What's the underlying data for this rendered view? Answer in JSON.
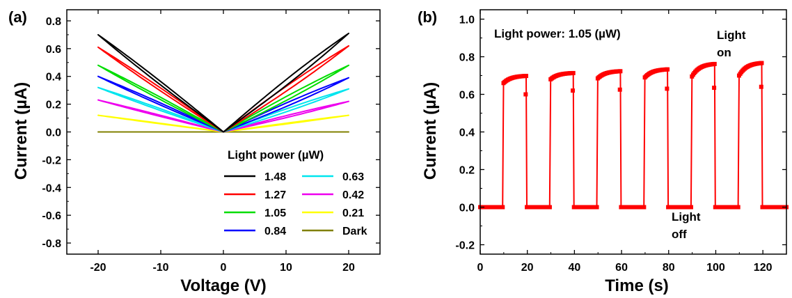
{
  "chart_data": [
    {
      "panel": "(a)",
      "type": "line",
      "xlabel": "Voltage (V)",
      "ylabel": "Current (µA)",
      "xlim": [
        -25,
        25
      ],
      "ylim": [
        -0.88,
        0.88
      ],
      "xticks": [
        -20,
        -10,
        0,
        10,
        20
      ],
      "yticks": [
        -0.8,
        -0.6,
        -0.4,
        -0.2,
        0.0,
        0.2,
        0.4,
        0.6,
        0.8
      ],
      "ytick_labels": [
        "-0.8",
        "-0.6",
        "-0.4",
        "-0.2",
        "0.0",
        "0.2",
        "0.4",
        "0.6",
        "0.8"
      ],
      "legend_title": "Light power (µW)",
      "legend_position": "bottom-right",
      "series": [
        {
          "name": "1.48",
          "color": "#000000",
          "end_values": [
            -0.7,
            0.71
          ],
          "hysteresis": 0.06
        },
        {
          "name": "1.27",
          "color": "#ff0000",
          "end_values": [
            -0.61,
            0.62
          ],
          "hysteresis": 0.05
        },
        {
          "name": "1.05",
          "color": "#00dd00",
          "end_values": [
            -0.48,
            0.48
          ],
          "hysteresis": 0.04
        },
        {
          "name": "0.84",
          "color": "#0000ff",
          "end_values": [
            -0.4,
            0.39
          ],
          "hysteresis": 0.035
        },
        {
          "name": "0.63",
          "color": "#00e5ee",
          "end_values": [
            -0.32,
            0.31
          ],
          "hysteresis": 0.03
        },
        {
          "name": "0.42",
          "color": "#ee00ee",
          "end_values": [
            -0.23,
            0.22
          ],
          "hysteresis": 0.02
        },
        {
          "name": "0.21",
          "color": "#ffff00",
          "end_values": [
            -0.12,
            0.12
          ],
          "hysteresis": 0.008
        },
        {
          "name": "Dark",
          "color": "#808000",
          "end_values": [
            0.0,
            0.0
          ],
          "hysteresis": 0.0
        }
      ]
    },
    {
      "panel": "(b)",
      "type": "line",
      "xlabel": "Time (s)",
      "ylabel": "Current (µA)",
      "xlim": [
        0,
        130
      ],
      "ylim": [
        -0.25,
        1.05
      ],
      "xticks": [
        0,
        20,
        40,
        60,
        80,
        100,
        120
      ],
      "yticks": [
        -0.2,
        0.0,
        0.2,
        0.4,
        0.6,
        0.8,
        1.0
      ],
      "ytick_labels": [
        "-0.2",
        "0.0",
        "0.2",
        "0.4",
        "0.6",
        "0.8",
        "1.0"
      ],
      "annotation": "Light power: 1.05 (µW)",
      "label_on": [
        "Light",
        "on"
      ],
      "label_off": [
        "Light",
        "off"
      ],
      "series": [
        {
          "color": "#ff0000",
          "baseline": 0.0,
          "cycles": [
            {
              "on": 9.5,
              "off": 19.5,
              "start": 0.66,
              "end": 0.7
            },
            {
              "on": 29.5,
              "off": 39.5,
              "start": 0.68,
              "end": 0.715
            },
            {
              "on": 49.5,
              "off": 59.5,
              "start": 0.685,
              "end": 0.725
            },
            {
              "on": 69.5,
              "off": 79.5,
              "start": 0.69,
              "end": 0.735
            },
            {
              "on": 89.5,
              "off": 99.5,
              "start": 0.695,
              "end": 0.765
            },
            {
              "on": 109.5,
              "off": 119.5,
              "start": 0.7,
              "end": 0.77
            }
          ]
        }
      ]
    }
  ]
}
